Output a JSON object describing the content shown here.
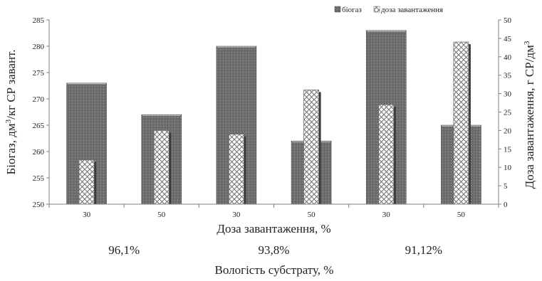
{
  "chart_data": {
    "type": "bar",
    "categories": [
      "30",
      "50",
      "30",
      "50",
      "30",
      "50"
    ],
    "series": [
      {
        "name": "біогаз",
        "axis": "left",
        "values": [
          273,
          267,
          280,
          262,
          283,
          265
        ]
      },
      {
        "name": "доза завантаження",
        "axis": "right",
        "values": [
          12,
          20,
          19,
          31,
          27,
          44
        ]
      }
    ],
    "xlabel": "Доза завантаження, %",
    "ylabel_left_parts": [
      "Біогаз, дм",
      "3",
      "/кг СР завант."
    ],
    "ylabel_right_parts": [
      "Доза завантаження, г СР/дм",
      "3"
    ],
    "ylim_left": [
      250,
      285
    ],
    "yticks_left": [
      250,
      255,
      260,
      265,
      270,
      275,
      280,
      285
    ],
    "ylim_right": [
      0,
      50
    ],
    "yticks_right": [
      0,
      5,
      10,
      15,
      20,
      25,
      30,
      35,
      40,
      45,
      50
    ],
    "groups": [
      {
        "label": "96,1%",
        "categories": [
          0,
          1
        ]
      },
      {
        "label": "93,8%",
        "categories": [
          2,
          3
        ]
      },
      {
        "label": "91,12%",
        "categories": [
          4,
          5
        ]
      }
    ],
    "group_axis_label": "Вологість субстрату, %",
    "legend_position": "top-right",
    "grid": false,
    "colors": {
      "biogas": "#6e6e6e",
      "dose": "#ffffff",
      "axis": "#7f7f7f"
    }
  }
}
